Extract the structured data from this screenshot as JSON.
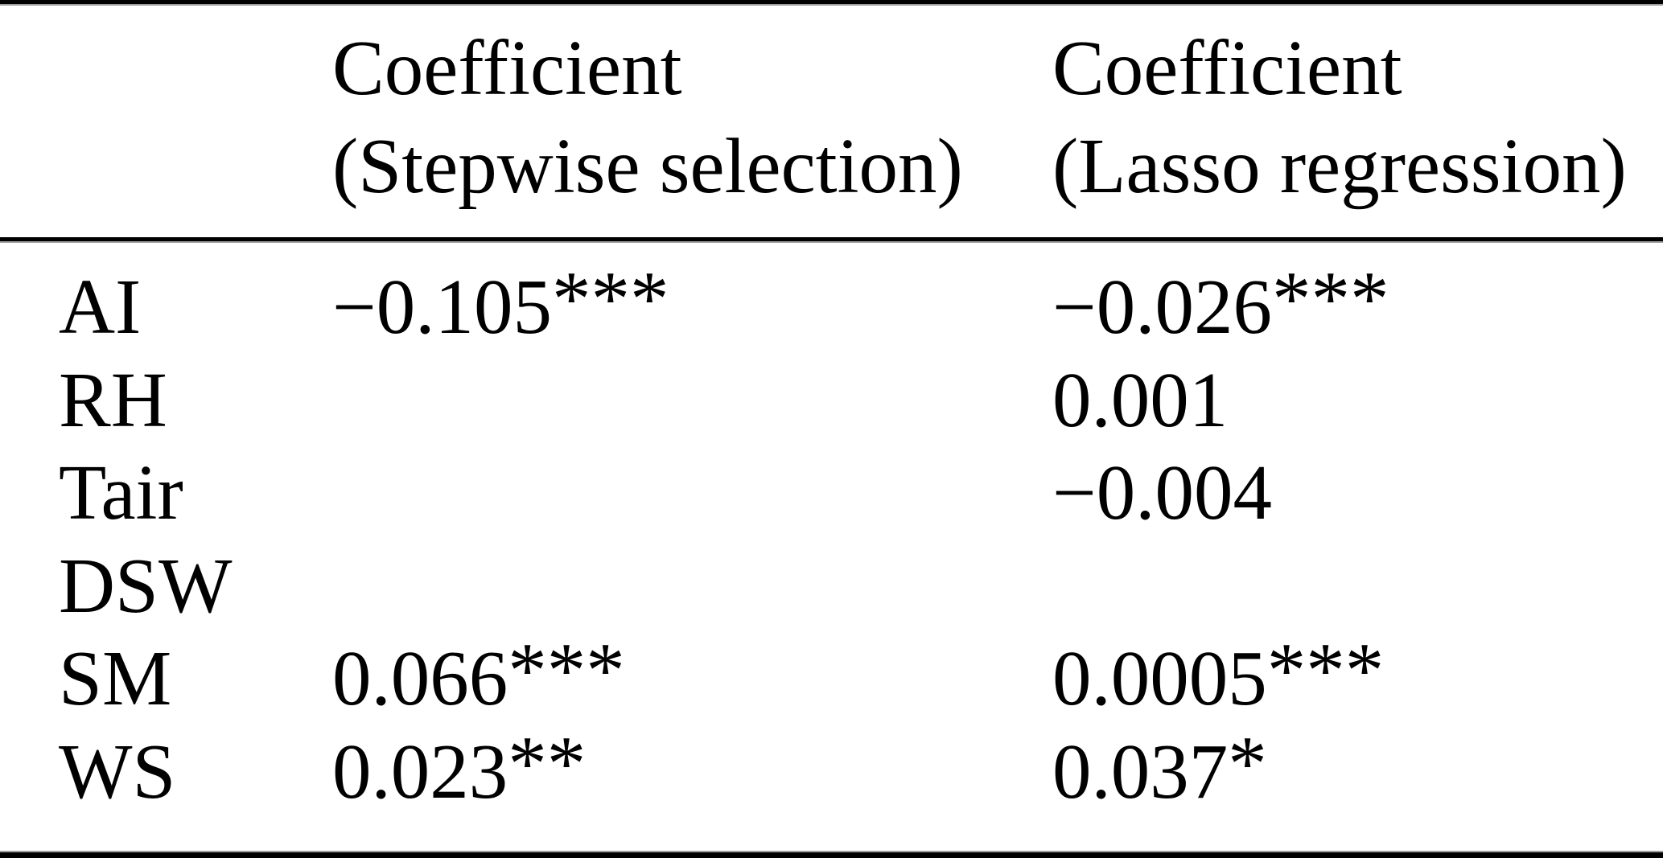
{
  "table": {
    "header": {
      "col1_line1": "Coefficient",
      "col1_line2": "(Stepwise selection)",
      "col2_line1": "Coefficient",
      "col2_line2": "(Lasso regression)"
    },
    "rows": [
      {
        "variable": "AI",
        "stepwise_value": "−0.105",
        "stepwise_sig": "***",
        "lasso_value": "−0.026",
        "lasso_sig": "***"
      },
      {
        "variable": "RH",
        "stepwise_value": "",
        "stepwise_sig": "",
        "lasso_value": "0.001",
        "lasso_sig": ""
      },
      {
        "variable": "Tair",
        "stepwise_value": "",
        "stepwise_sig": "",
        "lasso_value": "−0.004",
        "lasso_sig": ""
      },
      {
        "variable": "DSW",
        "stepwise_value": "",
        "stepwise_sig": "",
        "lasso_value": "",
        "lasso_sig": ""
      },
      {
        "variable": "SM",
        "stepwise_value": "0.066",
        "stepwise_sig": "***",
        "lasso_value": "0.0005",
        "lasso_sig": "***"
      },
      {
        "variable": "WS",
        "stepwise_value": "0.023",
        "stepwise_sig": "**",
        "lasso_value": "0.037",
        "lasso_sig": "*"
      }
    ],
    "colors": {
      "text": "#000000",
      "background": "#ffffff",
      "rule": "#000000",
      "rule_shadow": "#9e9e9e"
    }
  }
}
